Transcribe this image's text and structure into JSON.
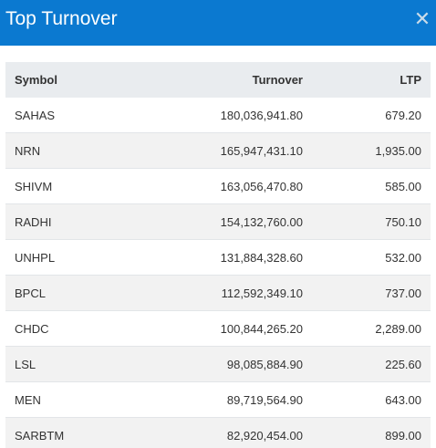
{
  "header": {
    "title": "Top Turnover",
    "close_icon": "close-icon"
  },
  "table": {
    "columns": [
      "Symbol",
      "Turnover",
      "LTP"
    ],
    "rows": [
      {
        "symbol": "SAHAS",
        "turnover": "180,036,941.80",
        "ltp": "679.20"
      },
      {
        "symbol": "NRN",
        "turnover": "165,947,431.10",
        "ltp": "1,935.00"
      },
      {
        "symbol": "SHIVM",
        "turnover": "163,056,470.80",
        "ltp": "585.00"
      },
      {
        "symbol": "RADHI",
        "turnover": "154,132,760.00",
        "ltp": "750.10"
      },
      {
        "symbol": "UNHPL",
        "turnover": "131,884,328.60",
        "ltp": "532.00"
      },
      {
        "symbol": "BPCL",
        "turnover": "112,592,349.10",
        "ltp": "737.00"
      },
      {
        "symbol": "CHDC",
        "turnover": "100,844,265.20",
        "ltp": "2,289.00"
      },
      {
        "symbol": "LSL",
        "turnover": "98,085,884.90",
        "ltp": "225.60"
      },
      {
        "symbol": "MEN",
        "turnover": "89,719,564.90",
        "ltp": "643.00"
      },
      {
        "symbol": "SARBTM",
        "turnover": "82,920,454.00",
        "ltp": "899.00"
      }
    ]
  },
  "colors": {
    "header_bg": "#0b79d0",
    "header_text": "#ffffff",
    "table_header_bg": "#e9ecef",
    "stripe_bg": "#f2f2f2"
  }
}
